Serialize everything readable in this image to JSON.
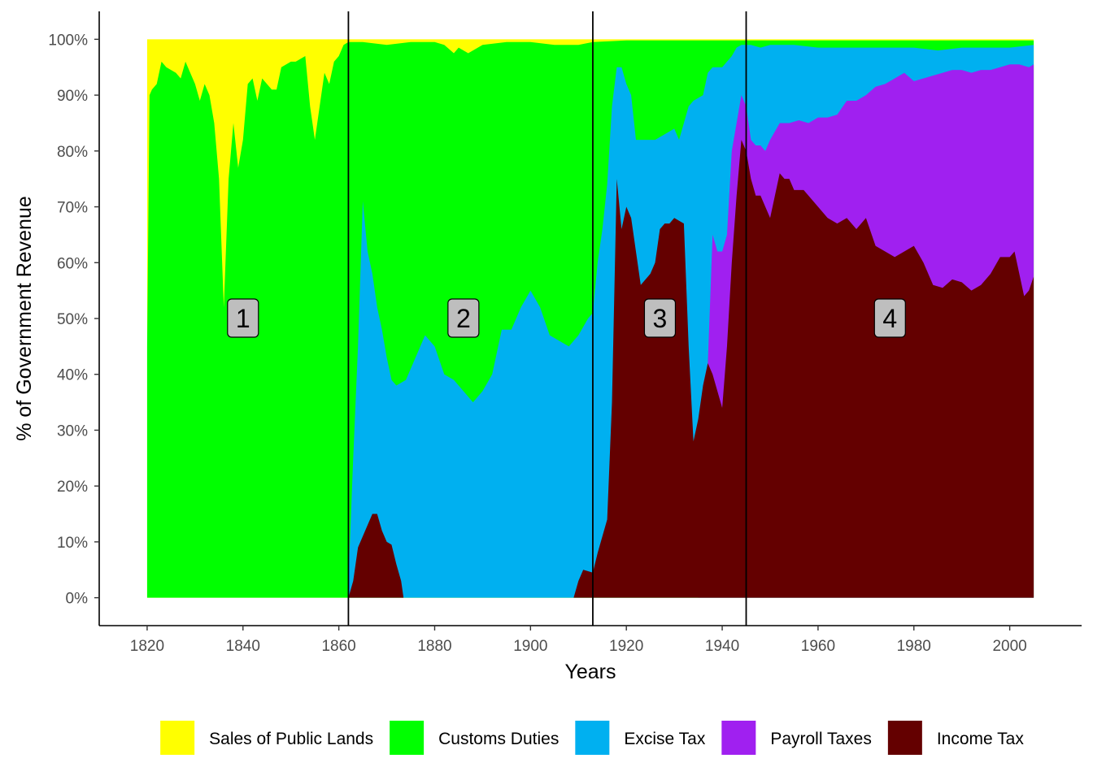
{
  "chart_data": {
    "type": "area",
    "stacked": true,
    "normalized": true,
    "xlabel": "Years",
    "ylabel": "% of Government Revenue",
    "xlim": [
      1810,
      2015
    ],
    "ylim": [
      -0.05,
      1.05
    ],
    "x_ticks": [
      1820,
      1840,
      1860,
      1880,
      1900,
      1920,
      1940,
      1960,
      1980,
      2000
    ],
    "y_ticks": [
      0,
      0.1,
      0.2,
      0.3,
      0.4,
      0.5,
      0.6,
      0.7,
      0.8,
      0.9,
      1.0
    ],
    "y_tick_labels": [
      "0%",
      "10%",
      "20%",
      "30%",
      "40%",
      "50%",
      "60%",
      "70%",
      "80%",
      "90%",
      "100%"
    ],
    "grid": false,
    "legend_position": "bottom",
    "vlines": [
      1862,
      1913,
      1945
    ],
    "annotations": [
      {
        "label": "1",
        "x": 1840,
        "y": 0.5
      },
      {
        "label": "2",
        "x": 1886,
        "y": 0.5
      },
      {
        "label": "3",
        "x": 1927,
        "y": 0.5
      },
      {
        "label": "4",
        "x": 1975,
        "y": 0.5
      }
    ],
    "stack_order_bottom_to_top": [
      "Income Tax",
      "Payroll Taxes",
      "Excise Tax",
      "Customs Duties",
      "Sales of Public Lands"
    ],
    "series": [
      {
        "name": "Income Tax",
        "color": "#640000",
        "points": [
          [
            1820,
            0
          ],
          [
            1862,
            0
          ],
          [
            1863,
            0.03
          ],
          [
            1864,
            0.09
          ],
          [
            1866,
            0.13
          ],
          [
            1867,
            0.15
          ],
          [
            1868,
            0.15
          ],
          [
            1869,
            0.12
          ],
          [
            1870,
            0.1
          ],
          [
            1871,
            0.095
          ],
          [
            1872,
            0.06
          ],
          [
            1873,
            0.03
          ],
          [
            1873.5,
            0
          ],
          [
            1909,
            0
          ],
          [
            1910,
            0.03
          ],
          [
            1911,
            0.05
          ],
          [
            1913,
            0.045
          ],
          [
            1914,
            0.08
          ],
          [
            1915,
            0.11
          ],
          [
            1916,
            0.14
          ],
          [
            1917,
            0.35
          ],
          [
            1918,
            0.75
          ],
          [
            1919,
            0.66
          ],
          [
            1920,
            0.7
          ],
          [
            1921,
            0.68
          ],
          [
            1922,
            0.62
          ],
          [
            1923,
            0.56
          ],
          [
            1924,
            0.57
          ],
          [
            1925,
            0.58
          ],
          [
            1926,
            0.6
          ],
          [
            1927,
            0.66
          ],
          [
            1928,
            0.67
          ],
          [
            1929,
            0.67
          ],
          [
            1930,
            0.68
          ],
          [
            1932,
            0.67
          ],
          [
            1933,
            0.45
          ],
          [
            1934,
            0.28
          ],
          [
            1935,
            0.32
          ],
          [
            1936,
            0.38
          ],
          [
            1937,
            0.42
          ],
          [
            1938,
            0.4
          ],
          [
            1939,
            0.37
          ],
          [
            1940,
            0.34
          ],
          [
            1941,
            0.45
          ],
          [
            1942,
            0.6
          ],
          [
            1943,
            0.72
          ],
          [
            1944,
            0.82
          ],
          [
            1945,
            0.8
          ],
          [
            1946,
            0.75
          ],
          [
            1947,
            0.72
          ],
          [
            1948,
            0.72
          ],
          [
            1949,
            0.7
          ],
          [
            1950,
            0.68
          ],
          [
            1951,
            0.72
          ],
          [
            1952,
            0.76
          ],
          [
            1953,
            0.75
          ],
          [
            1954,
            0.75
          ],
          [
            1955,
            0.73
          ],
          [
            1956,
            0.73
          ],
          [
            1957,
            0.73
          ],
          [
            1958,
            0.72
          ],
          [
            1960,
            0.7
          ],
          [
            1962,
            0.68
          ],
          [
            1964,
            0.67
          ],
          [
            1966,
            0.68
          ],
          [
            1968,
            0.66
          ],
          [
            1970,
            0.68
          ],
          [
            1972,
            0.63
          ],
          [
            1974,
            0.62
          ],
          [
            1976,
            0.61
          ],
          [
            1978,
            0.62
          ],
          [
            1980,
            0.63
          ],
          [
            1982,
            0.6
          ],
          [
            1984,
            0.56
          ],
          [
            1986,
            0.555
          ],
          [
            1988,
            0.57
          ],
          [
            1990,
            0.565
          ],
          [
            1992,
            0.55
          ],
          [
            1994,
            0.56
          ],
          [
            1996,
            0.58
          ],
          [
            1998,
            0.61
          ],
          [
            2000,
            0.61
          ],
          [
            2001,
            0.62
          ],
          [
            2002,
            0.58
          ],
          [
            2003,
            0.54
          ],
          [
            2004,
            0.55
          ],
          [
            2005,
            0.575
          ]
        ]
      },
      {
        "name": "Payroll Taxes",
        "color": "#a020f0",
        "points": [
          [
            1820,
            0
          ],
          [
            1935,
            0
          ],
          [
            1936,
            0.38
          ],
          [
            1937,
            0.42
          ],
          [
            1938,
            0.65
          ],
          [
            1939,
            0.62
          ],
          [
            1940,
            0.62
          ],
          [
            1941,
            0.65
          ],
          [
            1942,
            0.8
          ],
          [
            1943,
            0.85
          ],
          [
            1944,
            0.9
          ],
          [
            1945,
            0.88
          ],
          [
            1946,
            0.82
          ],
          [
            1947,
            0.81
          ],
          [
            1948,
            0.81
          ],
          [
            1949,
            0.8
          ],
          [
            1950,
            0.82
          ],
          [
            1952,
            0.85
          ],
          [
            1954,
            0.85
          ],
          [
            1956,
            0.855
          ],
          [
            1958,
            0.85
          ],
          [
            1960,
            0.86
          ],
          [
            1962,
            0.86
          ],
          [
            1964,
            0.865
          ],
          [
            1966,
            0.89
          ],
          [
            1968,
            0.89
          ],
          [
            1970,
            0.9
          ],
          [
            1972,
            0.915
          ],
          [
            1974,
            0.92
          ],
          [
            1976,
            0.93
          ],
          [
            1978,
            0.94
          ],
          [
            1980,
            0.925
          ],
          [
            1982,
            0.93
          ],
          [
            1984,
            0.935
          ],
          [
            1986,
            0.94
          ],
          [
            1988,
            0.945
          ],
          [
            1990,
            0.945
          ],
          [
            1992,
            0.94
          ],
          [
            1994,
            0.945
          ],
          [
            1996,
            0.945
          ],
          [
            1998,
            0.95
          ],
          [
            2000,
            0.955
          ],
          [
            2002,
            0.955
          ],
          [
            2004,
            0.95
          ],
          [
            2005,
            0.955
          ]
        ]
      },
      {
        "name": "Excise Tax",
        "color": "#00b0f0",
        "points": [
          [
            1820,
            0
          ],
          [
            1861.9,
            0
          ],
          [
            1862,
            0.03
          ],
          [
            1863,
            0.25
          ],
          [
            1864,
            0.45
          ],
          [
            1865,
            0.71
          ],
          [
            1866,
            0.62
          ],
          [
            1867,
            0.58
          ],
          [
            1868,
            0.52
          ],
          [
            1869,
            0.48
          ],
          [
            1870,
            0.43
          ],
          [
            1871,
            0.39
          ],
          [
            1872,
            0.38
          ],
          [
            1874,
            0.39
          ],
          [
            1876,
            0.43
          ],
          [
            1878,
            0.47
          ],
          [
            1880,
            0.45
          ],
          [
            1882,
            0.4
          ],
          [
            1884,
            0.39
          ],
          [
            1886,
            0.37
          ],
          [
            1888,
            0.35
          ],
          [
            1890,
            0.37
          ],
          [
            1892,
            0.4
          ],
          [
            1894,
            0.48
          ],
          [
            1896,
            0.48
          ],
          [
            1898,
            0.52
          ],
          [
            1900,
            0.55
          ],
          [
            1902,
            0.52
          ],
          [
            1904,
            0.47
          ],
          [
            1906,
            0.46
          ],
          [
            1908,
            0.45
          ],
          [
            1910,
            0.47
          ],
          [
            1912,
            0.5
          ],
          [
            1913,
            0.51
          ],
          [
            1914,
            0.6
          ],
          [
            1915,
            0.66
          ],
          [
            1916,
            0.74
          ],
          [
            1917,
            0.88
          ],
          [
            1918,
            0.95
          ],
          [
            1919,
            0.95
          ],
          [
            1920,
            0.92
          ],
          [
            1921,
            0.9
          ],
          [
            1922,
            0.82
          ],
          [
            1923,
            0.82
          ],
          [
            1924,
            0.82
          ],
          [
            1926,
            0.82
          ],
          [
            1928,
            0.83
          ],
          [
            1930,
            0.84
          ],
          [
            1931,
            0.82
          ],
          [
            1932,
            0.85
          ],
          [
            1933,
            0.88
          ],
          [
            1934,
            0.89
          ],
          [
            1936,
            0.9
          ],
          [
            1937,
            0.94
          ],
          [
            1938,
            0.95
          ],
          [
            1940,
            0.95
          ],
          [
            1942,
            0.97
          ],
          [
            1943,
            0.985
          ],
          [
            1944,
            0.99
          ],
          [
            1946,
            0.99
          ],
          [
            1948,
            0.985
          ],
          [
            1950,
            0.99
          ],
          [
            1955,
            0.99
          ],
          [
            1960,
            0.985
          ],
          [
            1965,
            0.985
          ],
          [
            1970,
            0.985
          ],
          [
            1975,
            0.985
          ],
          [
            1980,
            0.985
          ],
          [
            1985,
            0.98
          ],
          [
            1990,
            0.985
          ],
          [
            1995,
            0.985
          ],
          [
            2000,
            0.985
          ],
          [
            2005,
            0.99
          ]
        ]
      },
      {
        "name": "Customs Duties",
        "color": "#00ff00",
        "points": [
          [
            1820,
            0.45
          ],
          [
            1820.5,
            0.9
          ],
          [
            1821,
            0.91
          ],
          [
            1822,
            0.92
          ],
          [
            1823,
            0.96
          ],
          [
            1824,
            0.95
          ],
          [
            1826,
            0.94
          ],
          [
            1827,
            0.93
          ],
          [
            1828,
            0.96
          ],
          [
            1830,
            0.92
          ],
          [
            1831,
            0.89
          ],
          [
            1832,
            0.92
          ],
          [
            1833,
            0.9
          ],
          [
            1834,
            0.85
          ],
          [
            1835,
            0.75
          ],
          [
            1836,
            0.52
          ],
          [
            1837,
            0.75
          ],
          [
            1838,
            0.85
          ],
          [
            1839,
            0.77
          ],
          [
            1840,
            0.82
          ],
          [
            1841,
            0.92
          ],
          [
            1842,
            0.93
          ],
          [
            1843,
            0.89
          ],
          [
            1844,
            0.93
          ],
          [
            1845,
            0.92
          ],
          [
            1846,
            0.91
          ],
          [
            1847,
            0.91
          ],
          [
            1848,
            0.95
          ],
          [
            1850,
            0.96
          ],
          [
            1851,
            0.96
          ],
          [
            1853,
            0.97
          ],
          [
            1854,
            0.88
          ],
          [
            1855,
            0.82
          ],
          [
            1856,
            0.88
          ],
          [
            1857,
            0.94
          ],
          [
            1858,
            0.92
          ],
          [
            1859,
            0.96
          ],
          [
            1860,
            0.97
          ],
          [
            1861,
            0.99
          ],
          [
            1862,
            0.995
          ],
          [
            1865,
            0.995
          ],
          [
            1870,
            0.99
          ],
          [
            1875,
            0.995
          ],
          [
            1880,
            0.995
          ],
          [
            1882,
            0.99
          ],
          [
            1884,
            0.975
          ],
          [
            1885,
            0.985
          ],
          [
            1887,
            0.975
          ],
          [
            1890,
            0.99
          ],
          [
            1895,
            0.995
          ],
          [
            1900,
            0.995
          ],
          [
            1905,
            0.99
          ],
          [
            1910,
            0.99
          ],
          [
            1913,
            0.995
          ],
          [
            1920,
            0.998
          ],
          [
            1930,
            0.998
          ],
          [
            1940,
            0.998
          ],
          [
            1945,
            0.998
          ],
          [
            2005,
            0.998
          ]
        ]
      },
      {
        "name": "Sales of Public Lands",
        "color": "#ffff00",
        "points": [
          [
            1820,
            1.0
          ],
          [
            2005,
            1.0
          ]
        ]
      }
    ]
  }
}
